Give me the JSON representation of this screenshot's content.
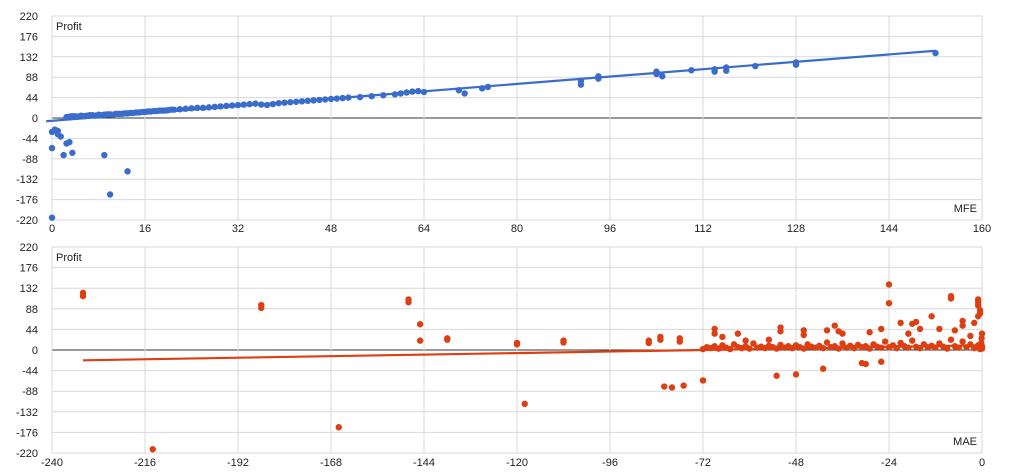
{
  "chart_data": [
    {
      "type": "scatter",
      "title": "",
      "xlabel": "MFE",
      "ylabel": "Profit",
      "xlim": [
        0,
        160
      ],
      "ylim": [
        -220,
        220
      ],
      "x_ticks": [
        "0",
        "16",
        "32",
        "48",
        "64",
        "80",
        "96",
        "112",
        "128",
        "144",
        "160"
      ],
      "y_ticks": [
        "220",
        "176",
        "132",
        "88",
        "44",
        "0",
        "-44",
        "-88",
        "-132",
        "-176",
        "-220"
      ],
      "grid": true,
      "color": "#3a6ccc",
      "trendline": {
        "x": [
          -1,
          152
        ],
        "y": [
          -7,
          145
        ]
      },
      "points": [
        [
          0,
          -215
        ],
        [
          0,
          -65
        ],
        [
          0,
          -30
        ],
        [
          0.5,
          -25
        ],
        [
          1,
          -35
        ],
        [
          1,
          -28
        ],
        [
          1.5,
          -40
        ],
        [
          2,
          -80
        ],
        [
          2.5,
          -55
        ],
        [
          3,
          -52
        ],
        [
          3.5,
          -75
        ],
        [
          9,
          -80
        ],
        [
          10,
          -165
        ],
        [
          13,
          -115
        ],
        [
          2.5,
          2
        ],
        [
          3,
          3
        ],
        [
          3.5,
          4
        ],
        [
          4,
          4
        ],
        [
          4.5,
          3
        ],
        [
          5,
          5
        ],
        [
          5.5,
          4
        ],
        [
          6,
          5
        ],
        [
          6.5,
          6
        ],
        [
          7,
          6
        ],
        [
          7.5,
          5
        ],
        [
          8,
          7
        ],
        [
          8.5,
          6
        ],
        [
          9,
          7
        ],
        [
          9.5,
          8
        ],
        [
          10,
          8
        ],
        [
          10.5,
          7
        ],
        [
          11,
          9
        ],
        [
          11.5,
          9
        ],
        [
          12,
          9
        ],
        [
          12.5,
          10
        ],
        [
          13,
          10
        ],
        [
          13.5,
          11
        ],
        [
          14,
          11
        ],
        [
          14.5,
          12
        ],
        [
          15,
          12
        ],
        [
          15.5,
          13
        ],
        [
          16,
          13
        ],
        [
          16.5,
          14
        ],
        [
          17,
          14
        ],
        [
          17.5,
          15
        ],
        [
          18,
          15
        ],
        [
          18.5,
          16
        ],
        [
          19,
          16
        ],
        [
          19.5,
          16
        ],
        [
          20,
          17
        ],
        [
          20.5,
          18
        ],
        [
          21,
          18
        ],
        [
          22,
          19
        ],
        [
          23,
          20
        ],
        [
          24,
          21
        ],
        [
          25,
          22
        ],
        [
          26,
          22
        ],
        [
          27,
          23
        ],
        [
          28,
          24
        ],
        [
          29,
          25
        ],
        [
          30,
          26
        ],
        [
          31,
          27
        ],
        [
          32,
          28
        ],
        [
          33,
          29
        ],
        [
          34,
          30
        ],
        [
          35,
          31
        ],
        [
          36,
          29
        ],
        [
          37,
          28
        ],
        [
          38,
          30
        ],
        [
          39,
          32
        ],
        [
          40,
          33
        ],
        [
          41,
          34
        ],
        [
          42,
          35
        ],
        [
          43,
          36
        ],
        [
          44,
          37
        ],
        [
          45,
          38
        ],
        [
          46,
          39
        ],
        [
          47,
          40
        ],
        [
          48,
          41
        ],
        [
          49,
          42
        ],
        [
          50,
          43
        ],
        [
          51,
          44
        ],
        [
          53,
          45
        ],
        [
          55,
          47
        ],
        [
          57,
          49
        ],
        [
          59,
          51
        ],
        [
          60,
          53
        ],
        [
          61,
          55
        ],
        [
          62,
          57
        ],
        [
          63,
          58
        ],
        [
          64,
          56
        ],
        [
          70,
          60
        ],
        [
          71,
          53
        ],
        [
          74,
          64
        ],
        [
          75,
          67
        ],
        [
          91,
          80
        ],
        [
          91,
          72
        ],
        [
          94,
          85
        ],
        [
          94,
          90
        ],
        [
          104,
          100
        ],
        [
          104,
          95
        ],
        [
          105,
          90
        ],
        [
          110,
          103
        ],
        [
          114,
          105
        ],
        [
          114,
          100
        ],
        [
          116,
          109
        ],
        [
          116,
          102
        ],
        [
          121,
          112
        ],
        [
          128,
          120
        ],
        [
          128,
          115
        ],
        [
          152,
          140
        ]
      ]
    },
    {
      "type": "scatter",
      "title": "",
      "xlabel": "MAE",
      "ylabel": "Profit",
      "xlim": [
        -240,
        0
      ],
      "ylim": [
        -220,
        220
      ],
      "x_ticks": [
        "-240",
        "-216",
        "-192",
        "-168",
        "-144",
        "-120",
        "-96",
        "-72",
        "-48",
        "-24",
        "0"
      ],
      "y_ticks": [
        "220",
        "176",
        "132",
        "88",
        "44",
        "0",
        "-44",
        "-88",
        "-132",
        "-176",
        "-220"
      ],
      "grid": true,
      "color": "#dd3f13",
      "trendline": {
        "x": [
          -232,
          0
        ],
        "y": [
          -22,
          10
        ]
      },
      "points": [
        [
          -232,
          122
        ],
        [
          -232,
          115
        ],
        [
          -214,
          -212
        ],
        [
          -186,
          96
        ],
        [
          -186,
          90
        ],
        [
          -166,
          -165
        ],
        [
          -148,
          108
        ],
        [
          -148,
          102
        ],
        [
          -145,
          55
        ],
        [
          -145,
          20
        ],
        [
          -138,
          25
        ],
        [
          -138,
          22
        ],
        [
          -120,
          15
        ],
        [
          -120,
          12
        ],
        [
          -118,
          -115
        ],
        [
          -108,
          20
        ],
        [
          -108,
          16
        ],
        [
          -86,
          20
        ],
        [
          -86,
          15
        ],
        [
          -83,
          28
        ],
        [
          -83,
          22
        ],
        [
          -82,
          -78
        ],
        [
          -80,
          -80
        ],
        [
          -78,
          25
        ],
        [
          -78,
          18
        ],
        [
          -77,
          -76
        ],
        [
          -72,
          -65
        ],
        [
          -69,
          45
        ],
        [
          -69,
          35
        ],
        [
          -67,
          28
        ],
        [
          -63,
          35
        ],
        [
          -61,
          20
        ],
        [
          -55,
          22
        ],
        [
          -53,
          -55
        ],
        [
          -52,
          48
        ],
        [
          -52,
          40
        ],
        [
          -48,
          -52
        ],
        [
          -46,
          42
        ],
        [
          -46,
          32
        ],
        [
          -41,
          -40
        ],
        [
          -40,
          42
        ],
        [
          -38,
          52
        ],
        [
          -37,
          40
        ],
        [
          -36,
          35
        ],
        [
          -31,
          -28
        ],
        [
          -30,
          -30
        ],
        [
          -29,
          38
        ],
        [
          -26,
          45
        ],
        [
          -26,
          -25
        ],
        [
          -24,
          140
        ],
        [
          -24,
          100
        ],
        [
          -21,
          58
        ],
        [
          -19,
          35
        ],
        [
          -18,
          56
        ],
        [
          -17,
          60
        ],
        [
          -16,
          45
        ],
        [
          -13,
          72
        ],
        [
          -11,
          45
        ],
        [
          -8,
          115
        ],
        [
          -8,
          110
        ],
        [
          -7,
          42
        ],
        [
          -5,
          62
        ],
        [
          -5,
          52
        ],
        [
          -3,
          30
        ],
        [
          -2,
          58
        ],
        [
          -1,
          72
        ],
        [
          -1,
          108
        ],
        [
          -1,
          102
        ],
        [
          -1,
          95
        ],
        [
          -0.5,
          85
        ],
        [
          -0.5,
          78
        ],
        [
          -72,
          2
        ],
        [
          -71,
          6
        ],
        [
          -70,
          4
        ],
        [
          -69,
          8
        ],
        [
          -68,
          3
        ],
        [
          -67,
          10
        ],
        [
          -66,
          5
        ],
        [
          -65,
          2
        ],
        [
          -64,
          12
        ],
        [
          -63,
          6
        ],
        [
          -62,
          4
        ],
        [
          -61,
          8
        ],
        [
          -60,
          3
        ],
        [
          -59,
          14
        ],
        [
          -58,
          5
        ],
        [
          -57,
          7
        ],
        [
          -56,
          4
        ],
        [
          -55,
          9
        ],
        [
          -54,
          6
        ],
        [
          -53,
          3
        ],
        [
          -52,
          11
        ],
        [
          -51,
          5
        ],
        [
          -50,
          8
        ],
        [
          -49,
          4
        ],
        [
          -48,
          10
        ],
        [
          -47,
          6
        ],
        [
          -46,
          3
        ],
        [
          -45,
          12
        ],
        [
          -44,
          7
        ],
        [
          -43,
          5
        ],
        [
          -42,
          9
        ],
        [
          -41,
          4
        ],
        [
          -40,
          16
        ],
        [
          -39,
          6
        ],
        [
          -38,
          8
        ],
        [
          -37,
          3
        ],
        [
          -36,
          14
        ],
        [
          -35,
          5
        ],
        [
          -34,
          9
        ],
        [
          -33,
          4
        ],
        [
          -32,
          11
        ],
        [
          -31,
          6
        ],
        [
          -30,
          8
        ],
        [
          -29,
          3
        ],
        [
          -28,
          12
        ],
        [
          -27,
          7
        ],
        [
          -26,
          5
        ],
        [
          -25,
          18
        ],
        [
          -24,
          6
        ],
        [
          -23,
          10
        ],
        [
          -22,
          4
        ],
        [
          -21,
          15
        ],
        [
          -20,
          8
        ],
        [
          -19,
          5
        ],
        [
          -18,
          20
        ],
        [
          -17,
          7
        ],
        [
          -16,
          4
        ],
        [
          -15,
          12
        ],
        [
          -14,
          6
        ],
        [
          -13,
          9
        ],
        [
          -12,
          5
        ],
        [
          -11,
          14
        ],
        [
          -10,
          7
        ],
        [
          -9,
          3
        ],
        [
          -8,
          22
        ],
        [
          -7,
          8
        ],
        [
          -6,
          5
        ],
        [
          -5,
          18
        ],
        [
          -4,
          6
        ],
        [
          -3,
          12
        ],
        [
          -2,
          4
        ],
        [
          -1,
          10
        ],
        [
          -0.5,
          2
        ],
        [
          -0.3,
          6
        ],
        [
          -0.2,
          15
        ],
        [
          -0.1,
          25
        ],
        [
          0,
          35
        ],
        [
          0,
          8
        ],
        [
          0,
          3
        ]
      ]
    }
  ]
}
